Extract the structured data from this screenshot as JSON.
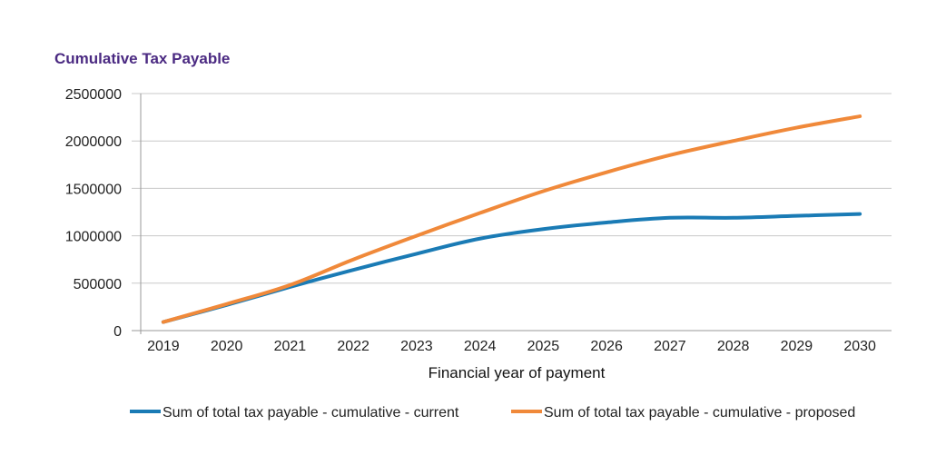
{
  "chart_data": {
    "type": "line",
    "title": "Cumulative Tax Payable",
    "xlabel": "Financial year of payment",
    "ylabel": "",
    "categories": [
      "2019",
      "2020",
      "2021",
      "2022",
      "2023",
      "2024",
      "2025",
      "2026",
      "2027",
      "2028",
      "2029",
      "2030"
    ],
    "ylim": [
      0,
      2500000
    ],
    "yticks": [
      "0",
      "500000",
      "1000000",
      "1500000",
      "2000000",
      "2500000"
    ],
    "grid": true,
    "legend_position": "bottom",
    "series": [
      {
        "name": "Sum of total tax payable - cumulative - current",
        "color": "#1a7bb5",
        "values": [
          90000,
          270000,
          460000,
          640000,
          810000,
          970000,
          1070000,
          1140000,
          1190000,
          1190000,
          1210000,
          1230000
        ]
      },
      {
        "name": "Sum of total tax payable - cumulative - proposed",
        "color": "#f0893a",
        "values": [
          90000,
          280000,
          480000,
          750000,
          1000000,
          1240000,
          1470000,
          1670000,
          1850000,
          2000000,
          2140000,
          2260000
        ]
      }
    ]
  }
}
